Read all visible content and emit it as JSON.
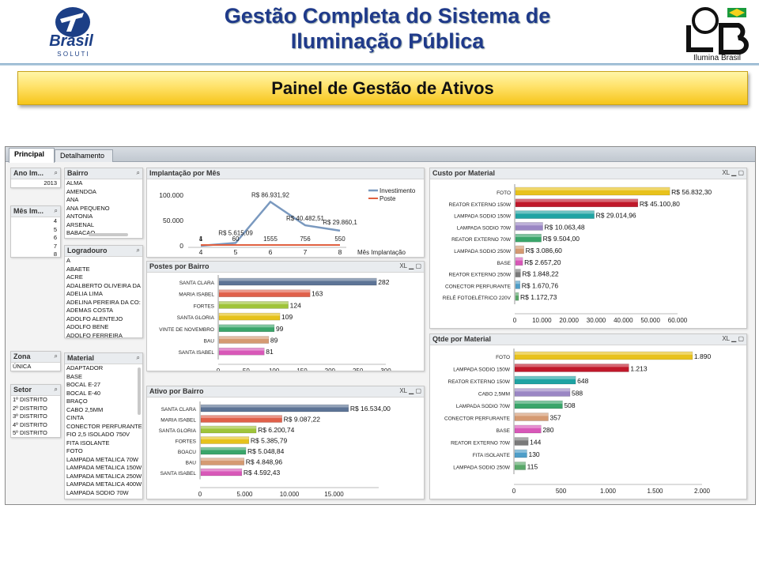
{
  "header": {
    "title_line1": "Gestão Completa do Sistema de",
    "title_line2": "Iluminação Pública",
    "logo_left_word": "Brasil",
    "logo_left_sub": "S O L U T I",
    "logo_right_caption": "Ilumina Brasil",
    "banner": "Painel de Gestão de Ativos"
  },
  "tabs": [
    {
      "label": "Principal",
      "active": true
    },
    {
      "label": "Detalhamento",
      "active": false
    }
  ],
  "filters": {
    "ano": {
      "title": "Ano Im...",
      "items": [
        "2013"
      ]
    },
    "mes": {
      "title": "Mês Im...",
      "items": [
        "4",
        "5",
        "6",
        "7",
        "8"
      ]
    },
    "bairro": {
      "title": "Bairro",
      "items": [
        "ALMA",
        "AMENDOA",
        "ANA",
        "ANA PEQUENO",
        "ANTONIA",
        "ARSENAL",
        "BABACAO"
      ]
    },
    "logradouro": {
      "title": "Logradouro",
      "items": [
        "A",
        "ABAETE",
        "ACRE",
        "ADALBERTO OLIVEIRA DA",
        "ADELIA LIMA",
        "ADELINA PEREIRA DA CO:",
        "ADEMAS COSTA",
        "ADOLFO ALENTEJO",
        "ADOLFO BENE",
        "ADOLFO FERREIRA"
      ]
    },
    "zona": {
      "title": "Zona",
      "items": [
        "ÚNICA"
      ]
    },
    "setor": {
      "title": "Setor",
      "items": [
        "1º DISTRITO",
        "2º DISTRITO",
        "3º DISTRITO",
        "4º DISTRITO",
        "5º DISTRITO"
      ]
    },
    "material": {
      "title": "Material",
      "items": [
        "ADAPTADOR",
        "BASE",
        "BOCAL E-27",
        "BOCAL E-40",
        "BRAÇO",
        "CABO 2,5MM",
        "CINTA",
        "CONECTOR PERFURANTE",
        "FIO 2,5 ISOLADO 750V",
        "FITA ISOLANTE",
        "FOTO",
        "LAMPADA METALICA 70W",
        "LAMPADA METALICA 150W",
        "LAMPADA METALICA 250W",
        "LAMPADA METALICA 400W",
        "LAMPADA SODIO 70W"
      ]
    }
  },
  "panel_controls": "XL",
  "chart_data": [
    {
      "id": "implantacao",
      "title": "Implantação por Mês",
      "type": "line",
      "x": [
        "4",
        "5",
        "6",
        "7",
        "8"
      ],
      "xlabel": "Mês Implantação",
      "ylim": [
        0,
        100000
      ],
      "yticks": [
        "0",
        "50.000",
        "100.000"
      ],
      "series": [
        {
          "name": "Investimento",
          "color": "#7a99bf",
          "values": [
            1,
            5615.09,
            86931.92,
            40482.51,
            29860.1
          ],
          "labels": [
            "1",
            "R$ 5.615,09",
            "R$ 86.931,92",
            "R$ 40.482,51",
            "R$ 29.860,1"
          ]
        },
        {
          "name": "Poste",
          "color": "#e06040",
          "values": [
            4,
            60,
            1555,
            756,
            550
          ],
          "labels": [
            "4",
            "60",
            "1555",
            "756",
            "550"
          ]
        }
      ]
    },
    {
      "id": "postes",
      "title": "Postes por Bairro",
      "type": "bar",
      "categories": [
        "SANTA CLARA",
        "MARIA ISABEL",
        "FORTES",
        "SANTA GLORIA",
        "VINTE DE NOVEMBRO",
        "BAU",
        "SANTA ISABEL"
      ],
      "values": [
        282,
        163,
        124,
        109,
        99,
        89,
        81
      ],
      "labels": [
        "282",
        "163",
        "124",
        "109",
        "99",
        "89",
        "81"
      ],
      "ticks": [
        "0",
        "50",
        "100",
        "150",
        "200",
        "250",
        "300"
      ],
      "xlim": [
        0,
        300
      ]
    },
    {
      "id": "ativo",
      "title": "Ativo por Bairro",
      "type": "bar",
      "categories": [
        "SANTA CLARA",
        "MARIA ISABEL",
        "SANTA GLORIA",
        "FORTES",
        "BOACU",
        "BAU",
        "SANTA ISABEL"
      ],
      "values": [
        16534,
        9087.22,
        6200.74,
        5385.79,
        5048.84,
        4848.96,
        4592.43
      ],
      "labels": [
        "R$ 16.534,00",
        "R$ 9.087,22",
        "R$ 6.200,74",
        "R$ 5.385,79",
        "R$ 5.048,84",
        "R$ 4.848,96",
        "R$ 4.592,43"
      ],
      "ticks": [
        "0",
        "5.000",
        "10.000",
        "15.000"
      ],
      "xlim": [
        0,
        20000
      ]
    },
    {
      "id": "custo",
      "title": "Custo por Material",
      "type": "bar",
      "categories": [
        "FOTO",
        "REATOR EXTERNO 150W",
        "LAMPADA SODIO 150W",
        "LAMPADA SODIO 70W",
        "REATOR EXTERNO 70W",
        "LAMPADA SODIO 250W",
        "BASE",
        "REATOR EXTERNO 250W",
        "CONECTOR PERFURANTE",
        "RELÉ FOTOELÉTRICO 220V"
      ],
      "values": [
        56832.3,
        45100.8,
        29014.96,
        10063.48,
        9504.0,
        3086.6,
        2657.2,
        1848.22,
        1670.76,
        1172.73
      ],
      "labels": [
        "R$ 56.832,30",
        "R$ 45.100,80",
        "R$ 29.014,96",
        "R$ 10.063,48",
        "R$ 9.504,00",
        "R$ 3.086,60",
        "R$ 2.657,20",
        "R$ 1.848,22",
        "R$ 1.670,76",
        "R$ 1.172,73"
      ],
      "ticks": [
        "0",
        "10.000",
        "20.000",
        "30.000",
        "40.000",
        "50.000",
        "60.000"
      ],
      "xlim": [
        0,
        60000
      ]
    },
    {
      "id": "qtde",
      "title": "Qtde por Material",
      "type": "bar",
      "categories": [
        "FOTO",
        "LAMPADA SODIO 150W",
        "REATOR EXTERNO 150W",
        "CABO 2,5MM",
        "LAMPADA SODIO 70W",
        "CONECTOR PERFURANTE",
        "BASE",
        "REATOR EXTERNO 70W",
        "FITA ISOLANTE",
        "LAMPADA SODIO 250W"
      ],
      "values": [
        1890,
        1213,
        648,
        588,
        508,
        357,
        280,
        144,
        130,
        115
      ],
      "labels": [
        "1.890",
        "1.213",
        "648",
        "588",
        "508",
        "357",
        "280",
        "144",
        "130",
        "115"
      ],
      "ticks": [
        "0",
        "500",
        "1.000",
        "1.500",
        "2.000"
      ],
      "xlim": [
        0,
        2000
      ]
    }
  ],
  "bar_colors": [
    "#e8c21c",
    "#c0182a",
    "#1fa3a3",
    "#9a86c4",
    "#3aa56a",
    "#d59a72",
    "#d858b8",
    "#7a7a7a",
    "#4f9ec8",
    "#5aa86a"
  ],
  "bairro_colors": [
    "#5d7496",
    "#e0604a",
    "#9fc43a",
    "#e6c21c",
    "#3aa56a",
    "#d59a72",
    "#d858b8"
  ]
}
